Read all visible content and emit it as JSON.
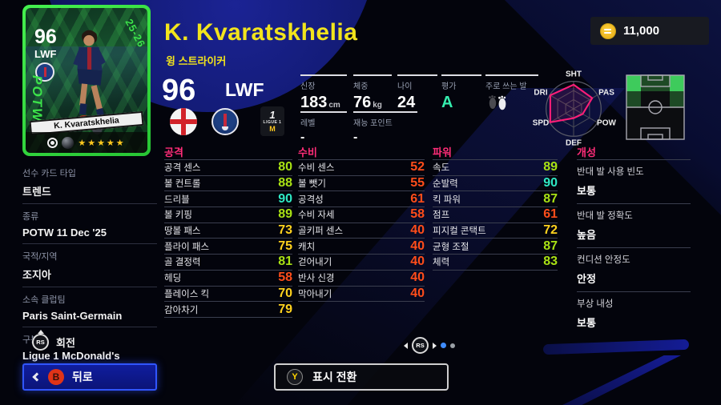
{
  "palette": {
    "accent_pink": "#ff2d78",
    "title_yellow": "#f2e41c",
    "card_green": "#35e23c",
    "tier_teal": "#2fe9c4",
    "tier_lime": "#a9e214",
    "tier_yellow": "#ffd21e",
    "tier_low": "#ff4d1a",
    "rating_a_mint": "#35edae",
    "back_button_blue": "#3055ff",
    "pager_dot_blue": "#3f8cff"
  },
  "topbar": {
    "coins": "11,000"
  },
  "header": {
    "title": "K. Kvaratskhelia",
    "subtitle": "윙 스트라이커"
  },
  "card": {
    "rating": "96",
    "position": "LWF",
    "season": "25-26",
    "edition": "POTW",
    "name": "K. Kvaratskhelia",
    "stars": "★★★★★"
  },
  "sidebar": {
    "items": [
      {
        "label": "선수 카드 타입",
        "value": "트렌드"
      },
      {
        "label": "종류",
        "value": "POTW 11 Dec '25"
      },
      {
        "label": "국적/지역",
        "value": "조지아"
      },
      {
        "label": "소속 클럽팀",
        "value": "Paris Saint-Germain"
      },
      {
        "label": "구분",
        "value": "Ligue 1 McDonald's"
      }
    ]
  },
  "summary": {
    "rating": "96",
    "position": "LWF",
    "badges": {
      "flag": "georgia-flag",
      "club": "psg-crest",
      "league_one": "1",
      "league_label": "LIGUE 1",
      "league_m": "M"
    },
    "cells": [
      {
        "label": "신장",
        "value": "183",
        "unit": "cm"
      },
      {
        "label": "체중",
        "value": "76",
        "unit": "kg"
      },
      {
        "label": "나이",
        "value": "24",
        "unit": ""
      },
      {
        "label": "평가",
        "value": "A",
        "unit": ""
      },
      {
        "label": "주로 쓰는 발",
        "value": "",
        "unit": ""
      }
    ],
    "cells2": [
      {
        "label": "레벨",
        "value": "-"
      },
      {
        "label": "재능 포인트",
        "value": "-"
      }
    ]
  },
  "radar": {
    "labels": [
      "SHT",
      "PAS",
      "POW",
      "DEF",
      "SPD",
      "DRI"
    ],
    "values": [
      0.88,
      0.78,
      0.38,
      0.34,
      0.98,
      0.98
    ]
  },
  "pitch_zones": {
    "bright": [
      "top-left",
      "top-right"
    ],
    "dim": [
      "top-center",
      "middle-left",
      "middle-right"
    ]
  },
  "stat_columns": [
    {
      "header": "공격",
      "rows": [
        {
          "label": "공격 센스",
          "value": "80",
          "tier": "lime"
        },
        {
          "label": "볼 컨트롤",
          "value": "88",
          "tier": "lime"
        },
        {
          "label": "드리블",
          "value": "90",
          "tier": "teal"
        },
        {
          "label": "볼 키핑",
          "value": "89",
          "tier": "lime"
        },
        {
          "label": "땅볼 패스",
          "value": "73",
          "tier": "yellow"
        },
        {
          "label": "플라이 패스",
          "value": "75",
          "tier": "yellow"
        },
        {
          "label": "골 결정력",
          "value": "81",
          "tier": "lime"
        },
        {
          "label": "헤딩",
          "value": "58",
          "tier": "low"
        },
        {
          "label": "플레이스 킥",
          "value": "70",
          "tier": "yellow"
        },
        {
          "label": "감아차기",
          "value": "79",
          "tier": "yellow"
        }
      ]
    },
    {
      "header": "수비",
      "rows": [
        {
          "label": "수비 센스",
          "value": "52",
          "tier": "low"
        },
        {
          "label": "볼 뺏기",
          "value": "55",
          "tier": "low"
        },
        {
          "label": "공격성",
          "value": "61",
          "tier": "low"
        },
        {
          "label": "수비 자세",
          "value": "58",
          "tier": "low"
        },
        {
          "label": "골키퍼 센스",
          "value": "40",
          "tier": "low"
        },
        {
          "label": "캐치",
          "value": "40",
          "tier": "low"
        },
        {
          "label": "걷어내기",
          "value": "40",
          "tier": "low"
        },
        {
          "label": "반사 신경",
          "value": "40",
          "tier": "low"
        },
        {
          "label": "막아내기",
          "value": "40",
          "tier": "low"
        }
      ]
    },
    {
      "header": "파워",
      "rows": [
        {
          "label": "속도",
          "value": "89",
          "tier": "lime"
        },
        {
          "label": "순발력",
          "value": "90",
          "tier": "teal"
        },
        {
          "label": "킥 파워",
          "value": "87",
          "tier": "lime"
        },
        {
          "label": "점프",
          "value": "61",
          "tier": "low"
        },
        {
          "label": "피지컬 콘택트",
          "value": "72",
          "tier": "yellow"
        },
        {
          "label": "균형 조절",
          "value": "87",
          "tier": "lime"
        },
        {
          "label": "체력",
          "value": "83",
          "tier": "lime"
        }
      ]
    }
  ],
  "traits": {
    "header": "개성",
    "items": [
      {
        "label": "반대 발 사용 빈도",
        "value": "보통"
      },
      {
        "label": "반대 발 정확도",
        "value": "높음"
      },
      {
        "label": "컨디션 안정도",
        "value": "안정"
      },
      {
        "label": "부상 내성",
        "value": "보통"
      }
    ]
  },
  "footer": {
    "rotate_key": "RS",
    "rotate_label": "회전",
    "pager_key": "RS",
    "back_key": "B",
    "back_label": "뒤로",
    "toggle_key": "Y",
    "toggle_label": "표시 전환"
  }
}
